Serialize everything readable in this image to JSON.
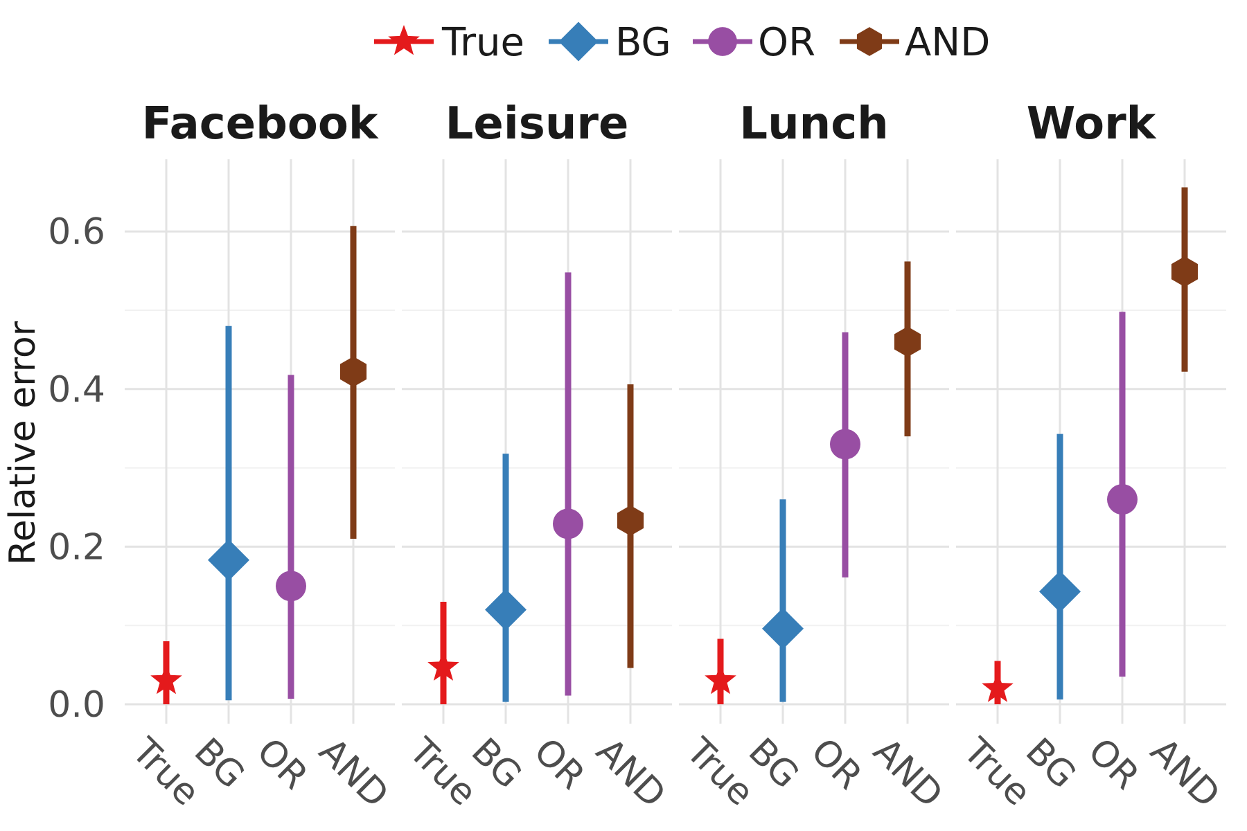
{
  "chart_data": {
    "type": "pointrange",
    "ylabel": "Relative error",
    "ylim": [
      -0.07,
      0.69
    ],
    "yticks": [
      0.0,
      0.2,
      0.4,
      0.6
    ],
    "ytick_labels": [
      "0.0",
      "0.2",
      "0.4",
      "0.6"
    ],
    "grid": true,
    "legend_position": "top",
    "categories": [
      "True",
      "BG",
      "OR",
      "AND"
    ],
    "series": [
      {
        "name": "True",
        "color": "#e41a1c",
        "marker": "star"
      },
      {
        "name": "BG",
        "color": "#377eb8",
        "marker": "diamond"
      },
      {
        "name": "OR",
        "color": "#984ea3",
        "marker": "circle"
      },
      {
        "name": "AND",
        "color": "#7f3b17",
        "marker": "hexagon"
      }
    ],
    "facets": [
      {
        "title": "Facebook",
        "points": [
          {
            "category": "True",
            "y": 0.03,
            "ymin": 0.0,
            "ymax": 0.08
          },
          {
            "category": "BG",
            "y": 0.183,
            "ymin": 0.005,
            "ymax": 0.48
          },
          {
            "category": "OR",
            "y": 0.15,
            "ymin": 0.007,
            "ymax": 0.418
          },
          {
            "category": "AND",
            "y": 0.422,
            "ymin": 0.21,
            "ymax": 0.607
          }
        ]
      },
      {
        "title": "Leisure",
        "points": [
          {
            "category": "True",
            "y": 0.047,
            "ymin": 0.0,
            "ymax": 0.13
          },
          {
            "category": "BG",
            "y": 0.12,
            "ymin": 0.003,
            "ymax": 0.318
          },
          {
            "category": "OR",
            "y": 0.229,
            "ymin": 0.011,
            "ymax": 0.548
          },
          {
            "category": "AND",
            "y": 0.233,
            "ymin": 0.046,
            "ymax": 0.406
          }
        ]
      },
      {
        "title": "Lunch",
        "points": [
          {
            "category": "True",
            "y": 0.03,
            "ymin": 0.0,
            "ymax": 0.083
          },
          {
            "category": "BG",
            "y": 0.096,
            "ymin": 0.003,
            "ymax": 0.26
          },
          {
            "category": "OR",
            "y": 0.33,
            "ymin": 0.161,
            "ymax": 0.472
          },
          {
            "category": "AND",
            "y": 0.46,
            "ymin": 0.34,
            "ymax": 0.562
          }
        ]
      },
      {
        "title": "Work",
        "points": [
          {
            "category": "True",
            "y": 0.02,
            "ymin": 0.0,
            "ymax": 0.055
          },
          {
            "category": "BG",
            "y": 0.143,
            "ymin": 0.006,
            "ymax": 0.343
          },
          {
            "category": "OR",
            "y": 0.26,
            "ymin": 0.035,
            "ymax": 0.498
          },
          {
            "category": "AND",
            "y": 0.549,
            "ymin": 0.422,
            "ymax": 0.656
          }
        ]
      }
    ]
  }
}
